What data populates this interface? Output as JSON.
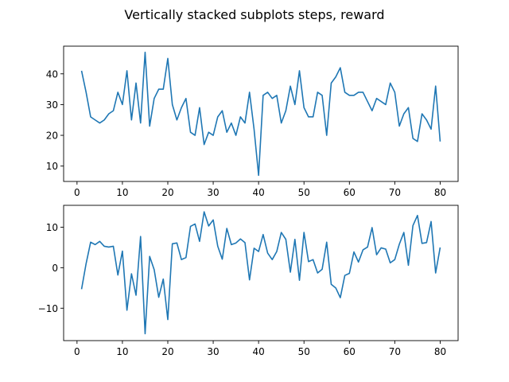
{
  "figure": {
    "title": "Vertically stacked subplots steps, reward"
  },
  "colors": {
    "series": "#1f77b4",
    "background": "#ffffff",
    "axes": "#000000"
  },
  "chart_data": [
    {
      "type": "line",
      "x": [
        1,
        2,
        3,
        4,
        5,
        6,
        7,
        8,
        9,
        10,
        11,
        12,
        13,
        14,
        15,
        16,
        17,
        18,
        19,
        20,
        21,
        22,
        23,
        24,
        25,
        26,
        27,
        28,
        29,
        30,
        31,
        32,
        33,
        34,
        35,
        36,
        37,
        38,
        39,
        40,
        41,
        42,
        43,
        44,
        45,
        46,
        47,
        48,
        49,
        50,
        51,
        52,
        53,
        54,
        55,
        56,
        57,
        58,
        59,
        60,
        61,
        62,
        63,
        64,
        65,
        66,
        67,
        68,
        69,
        70,
        71,
        72,
        73,
        74,
        75,
        76,
        77,
        78,
        79,
        80
      ],
      "series": [
        {
          "name": "",
          "values": [
            41,
            34,
            26,
            25,
            24,
            25,
            27,
            28,
            34,
            30,
            41,
            25,
            37,
            24,
            47,
            23,
            32,
            35,
            35,
            45,
            30,
            25,
            29,
            32,
            21,
            20,
            29,
            17,
            21,
            20,
            26,
            28,
            21,
            24,
            20,
            26,
            24,
            34,
            22,
            7,
            33,
            34,
            32,
            33,
            24,
            28,
            36,
            30,
            41,
            29,
            26,
            26,
            34,
            33,
            20,
            37,
            39,
            42,
            34,
            33,
            33,
            34,
            34,
            31,
            28,
            32,
            31,
            30,
            37,
            34,
            23,
            27,
            29,
            19,
            18,
            27,
            25,
            22,
            36,
            18
          ]
        }
      ],
      "xlim": [
        -2.95,
        83.95
      ],
      "ylim": [
        5,
        49
      ],
      "xticks": [
        0,
        10,
        20,
        30,
        40,
        50,
        60,
        70,
        80
      ],
      "yticks": [
        10,
        20,
        30,
        40
      ],
      "xlabel": "",
      "ylabel": "",
      "grid": false
    },
    {
      "type": "line",
      "x": [
        1,
        2,
        3,
        4,
        5,
        6,
        7,
        8,
        9,
        10,
        11,
        12,
        13,
        14,
        15,
        16,
        17,
        18,
        19,
        20,
        21,
        22,
        23,
        24,
        25,
        26,
        27,
        28,
        29,
        30,
        31,
        32,
        33,
        34,
        35,
        36,
        37,
        38,
        39,
        40,
        41,
        42,
        43,
        44,
        45,
        46,
        47,
        48,
        49,
        50,
        51,
        52,
        53,
        54,
        55,
        56,
        57,
        58,
        59,
        60,
        61,
        62,
        63,
        64,
        65,
        66,
        67,
        68,
        69,
        70,
        71,
        72,
        73,
        74,
        75,
        76,
        77,
        78,
        79,
        80
      ],
      "series": [
        {
          "name": "",
          "values": [
            -5.3,
            1.0,
            6.3,
            5.7,
            6.5,
            5.3,
            5.1,
            5.3,
            -1.8,
            4.1,
            -10.5,
            -1.5,
            -6.8,
            7.7,
            -16.3,
            2.8,
            -0.5,
            -7.3,
            -2.8,
            -12.8,
            5.9,
            6.1,
            2.0,
            2.5,
            10.2,
            10.8,
            6.5,
            13.8,
            10.3,
            11.8,
            5.3,
            2.1,
            9.7,
            5.7,
            6.1,
            7.1,
            6.2,
            -3.0,
            4.8,
            4.0,
            8.2,
            3.6,
            2.0,
            4.0,
            8.7,
            7.0,
            -1.1,
            7.0,
            -3.1,
            8.7,
            1.5,
            2.0,
            -1.3,
            -0.4,
            6.3,
            -4.1,
            -5.0,
            -7.4,
            -1.9,
            -1.4,
            3.9,
            1.4,
            4.4,
            5.1,
            9.9,
            3.2,
            4.9,
            4.6,
            1.2,
            2.0,
            5.8,
            8.7,
            0.6,
            10.4,
            12.9,
            6.0,
            6.2,
            11.4,
            -1.3,
            5.0
          ]
        }
      ],
      "xlim": [
        -2.95,
        83.95
      ],
      "ylim": [
        -18,
        15.4
      ],
      "xticks": [
        0,
        10,
        20,
        30,
        40,
        50,
        60,
        70,
        80
      ],
      "yticks": [
        -10,
        0,
        10
      ],
      "xlabel": "",
      "ylabel": "",
      "grid": false
    }
  ]
}
